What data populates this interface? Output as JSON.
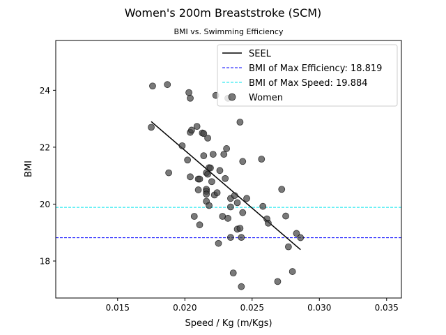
{
  "chart_data": {
    "type": "scatter",
    "title": "Women's 200m Breaststroke (SCM)",
    "subtitle": "BMI vs. Swimming Efficiency",
    "xlabel": "Speed / Kg (m/Kgs)",
    "ylabel": "BMI",
    "xlim": [
      0.0104,
      0.0361
    ],
    "ylim": [
      16.7,
      25.75
    ],
    "xticks": [
      0.015,
      0.02,
      0.025,
      0.03,
      0.035
    ],
    "xtick_labels": [
      "0.015",
      "0.020",
      "0.025",
      "0.030",
      "0.035"
    ],
    "yticks": [
      18,
      20,
      22,
      24
    ],
    "ytick_labels": [
      "18",
      "20",
      "22",
      "24"
    ],
    "grid": false,
    "legend_position": "top-right",
    "series": [
      {
        "name": "Women",
        "kind": "scatter",
        "color": "#404040",
        "points": [
          [
            0.0176,
            24.15
          ],
          [
            0.0175,
            22.7
          ],
          [
            0.0187,
            24.2
          ],
          [
            0.0188,
            21.1
          ],
          [
            0.0198,
            22.05
          ],
          [
            0.0202,
            21.55
          ],
          [
            0.0203,
            23.92
          ],
          [
            0.0204,
            23.72
          ],
          [
            0.0204,
            22.52
          ],
          [
            0.0205,
            22.6
          ],
          [
            0.0209,
            22.73
          ],
          [
            0.0213,
            22.5
          ],
          [
            0.0214,
            22.48
          ],
          [
            0.0217,
            22.32
          ],
          [
            0.0204,
            20.96
          ],
          [
            0.021,
            20.88
          ],
          [
            0.0211,
            20.88
          ],
          [
            0.0214,
            21.7
          ],
          [
            0.0216,
            21.1
          ],
          [
            0.0217,
            21.05
          ],
          [
            0.0218,
            21.28
          ],
          [
            0.0219,
            21.27
          ],
          [
            0.0221,
            21.75
          ],
          [
            0.0226,
            21.18
          ],
          [
            0.0229,
            21.75
          ],
          [
            0.0231,
            21.95
          ],
          [
            0.023,
            20.9
          ],
          [
            0.022,
            20.79
          ],
          [
            0.0222,
            20.32
          ],
          [
            0.0224,
            20.4
          ],
          [
            0.021,
            20.5
          ],
          [
            0.0216,
            20.52
          ],
          [
            0.0216,
            20.45
          ],
          [
            0.0216,
            20.35
          ],
          [
            0.0216,
            20.1
          ],
          [
            0.0218,
            19.95
          ],
          [
            0.0207,
            19.57
          ],
          [
            0.0211,
            19.27
          ],
          [
            0.0228,
            19.57
          ],
          [
            0.0232,
            19.5
          ],
          [
            0.0234,
            20.2
          ],
          [
            0.0234,
            19.9
          ],
          [
            0.0237,
            20.3
          ],
          [
            0.0239,
            20.05
          ],
          [
            0.0243,
            19.7
          ],
          [
            0.0246,
            20.2
          ],
          [
            0.0243,
            21.5
          ],
          [
            0.0241,
            22.88
          ],
          [
            0.0232,
            23.72
          ],
          [
            0.0223,
            23.82
          ],
          [
            0.0257,
            21.58
          ],
          [
            0.0258,
            19.92
          ],
          [
            0.0261,
            19.48
          ],
          [
            0.0262,
            19.33
          ],
          [
            0.0239,
            19.12
          ],
          [
            0.0241,
            19.15
          ],
          [
            0.0234,
            18.83
          ],
          [
            0.0242,
            18.83
          ],
          [
            0.0225,
            18.62
          ],
          [
            0.0272,
            20.52
          ],
          [
            0.0275,
            19.58
          ],
          [
            0.0277,
            18.5
          ],
          [
            0.0283,
            18.97
          ],
          [
            0.0286,
            18.82
          ],
          [
            0.0236,
            17.58
          ],
          [
            0.0242,
            17.1
          ],
          [
            0.0269,
            17.28
          ],
          [
            0.028,
            17.63
          ]
        ]
      },
      {
        "name": "SEEL",
        "kind": "line",
        "color": "#000000",
        "points": [
          [
            0.0175,
            22.9
          ],
          [
            0.0286,
            18.4
          ]
        ]
      }
    ],
    "reference_lines": [
      {
        "name": "BMI of Max Efficiency: 18.819",
        "y": 18.819,
        "color": "#0000ff",
        "style": "dashed"
      },
      {
        "name": "BMI of Max Speed: 19.884",
        "y": 19.884,
        "color": "#00e5ee",
        "style": "dashed"
      }
    ],
    "legend": [
      {
        "label": "SEEL",
        "marker": "line",
        "color": "#000000"
      },
      {
        "label": "BMI of Max Efficiency: 18.819",
        "marker": "dashed",
        "color": "#0000ff"
      },
      {
        "label": "BMI of Max Speed: 19.884",
        "marker": "dashed",
        "color": "#00e5ee"
      },
      {
        "label": "Women",
        "marker": "circle",
        "color": "#404040"
      }
    ]
  }
}
